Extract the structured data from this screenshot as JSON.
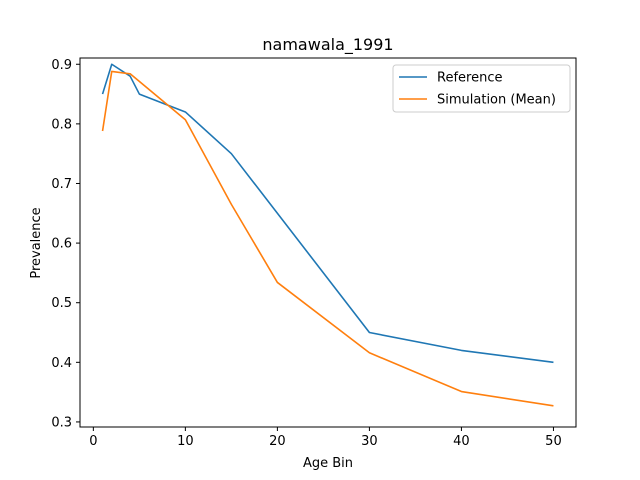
{
  "chart_data": {
    "type": "line",
    "title": "namawala_1991",
    "xlabel": "Age Bin",
    "ylabel": "Prevalence",
    "xlim": [
      -1.45,
      52.45
    ],
    "ylim": [
      0.2915,
      0.9105
    ],
    "xticks": [
      0,
      10,
      20,
      30,
      40,
      50
    ],
    "yticks": [
      0.3,
      0.4,
      0.5,
      0.6,
      0.7,
      0.8,
      0.9
    ],
    "grid": false,
    "legend_position": "top-right",
    "series": [
      {
        "name": "Reference",
        "color": "#1f77b4",
        "x": [
          1,
          2,
          4,
          5,
          10,
          15,
          30,
          40,
          50
        ],
        "y": [
          0.85,
          0.9,
          0.88,
          0.85,
          0.82,
          0.75,
          0.45,
          0.42,
          0.4
        ]
      },
      {
        "name": "Simulation (Mean)",
        "color": "#ff7f0e",
        "x": [
          1,
          2,
          4,
          10,
          15,
          20,
          30,
          40,
          50
        ],
        "y": [
          0.788,
          0.888,
          0.884,
          0.807,
          0.665,
          0.534,
          0.416,
          0.351,
          0.327
        ]
      }
    ]
  }
}
